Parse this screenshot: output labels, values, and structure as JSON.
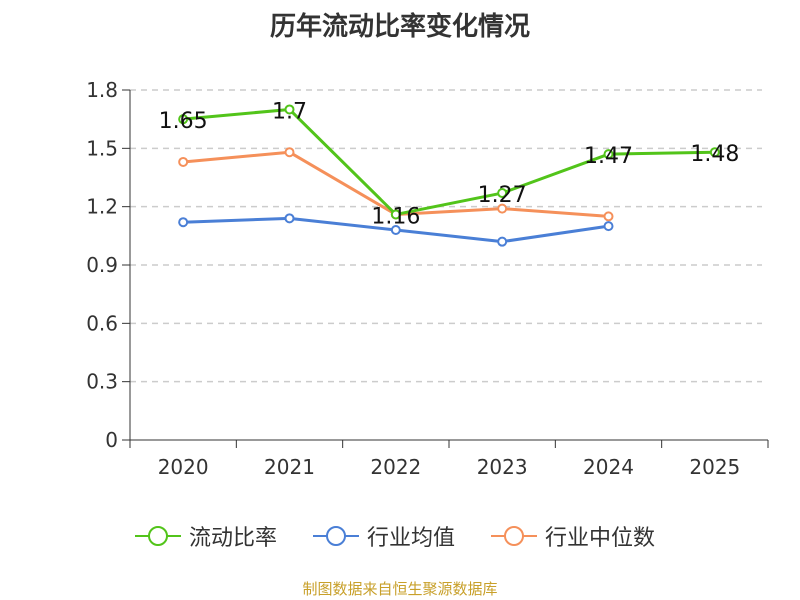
{
  "title": "历年流动比率变化情况",
  "source_note": "制图数据来自恒生聚源数据库",
  "chart_data": {
    "type": "line",
    "title": "历年流动比率变化情况",
    "categories": [
      "2020",
      "2021",
      "2022",
      "2023",
      "2024",
      "2025"
    ],
    "ylim": [
      0,
      1.8
    ],
    "yticks": [
      0,
      0.3,
      0.6,
      0.9,
      1.2,
      1.5,
      1.8
    ],
    "ytick_labels": [
      "0",
      "0.3",
      "0.6",
      "0.9",
      "1.2",
      "1.5",
      "1.8"
    ],
    "grid": true,
    "legend_position": "bottom",
    "series": [
      {
        "name": "流动比率",
        "color": "#52c41a",
        "values": [
          1.65,
          1.7,
          1.16,
          1.27,
          1.47,
          1.48
        ],
        "labels": [
          "1.65",
          "1.7",
          "1.16",
          "1.27",
          "1.47",
          "1.48"
        ],
        "show_labels": true
      },
      {
        "name": "行业均值",
        "color": "#4a7fd6",
        "values": [
          1.12,
          1.14,
          1.08,
          1.02,
          1.1,
          null
        ],
        "show_labels": false
      },
      {
        "name": "行业中位数",
        "color": "#f5905a",
        "values": [
          1.43,
          1.48,
          1.16,
          1.19,
          1.15,
          null
        ],
        "show_labels": false
      }
    ]
  }
}
